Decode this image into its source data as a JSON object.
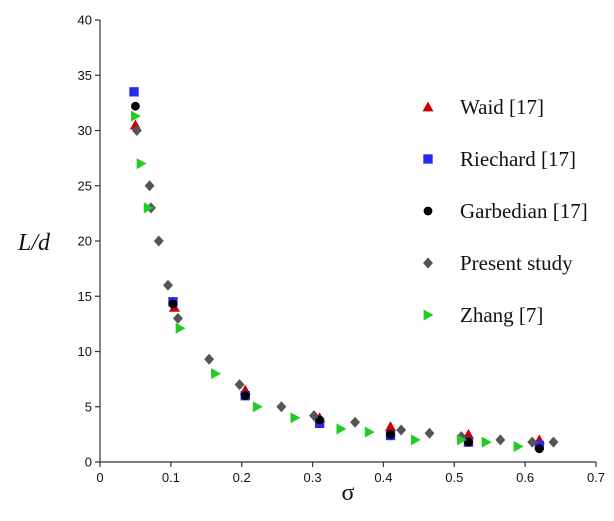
{
  "chart_data": {
    "type": "scatter",
    "xlabel": "σ",
    "ylabel": "L/d",
    "xlim": [
      0,
      0.7
    ],
    "ylim": [
      0,
      40
    ],
    "x_ticks": [
      "0",
      "0.1",
      "0.2",
      "0.3",
      "0.4",
      "0.5",
      "0.6",
      "0.7"
    ],
    "y_ticks": [
      "0",
      "5",
      "10",
      "15",
      "20",
      "25",
      "30",
      "35",
      "40"
    ],
    "grid": false,
    "legend_position": "right",
    "series": [
      {
        "name": "Waid   [17]",
        "marker": "triangle",
        "color": "#cc0000",
        "points": [
          [
            0.05,
            30.5
          ],
          [
            0.105,
            14.0
          ],
          [
            0.205,
            6.5
          ],
          [
            0.31,
            4.0
          ],
          [
            0.41,
            3.2
          ],
          [
            0.52,
            2.5
          ],
          [
            0.62,
            2.0
          ]
        ]
      },
      {
        "name": "Riechard [17]",
        "marker": "square",
        "color": "#2a2aee",
        "points": [
          [
            0.048,
            33.5
          ],
          [
            0.103,
            14.5
          ],
          [
            0.205,
            6.0
          ],
          [
            0.31,
            3.5
          ],
          [
            0.41,
            2.4
          ],
          [
            0.52,
            1.8
          ],
          [
            0.62,
            1.5
          ]
        ]
      },
      {
        "name": "Garbedian [17]",
        "marker": "circle",
        "color": "#000000",
        "points": [
          [
            0.05,
            32.2
          ],
          [
            0.103,
            14.3
          ],
          [
            0.205,
            6.0
          ],
          [
            0.31,
            3.8
          ],
          [
            0.41,
            2.5
          ],
          [
            0.52,
            1.8
          ],
          [
            0.62,
            1.2
          ]
        ]
      },
      {
        "name": "Present study",
        "marker": "diamond",
        "color": "#555555",
        "points": [
          [
            0.052,
            30.0
          ],
          [
            0.07,
            25.0
          ],
          [
            0.072,
            23.0
          ],
          [
            0.083,
            20.0
          ],
          [
            0.096,
            16.0
          ],
          [
            0.11,
            13.0
          ],
          [
            0.154,
            9.3
          ],
          [
            0.197,
            7.0
          ],
          [
            0.256,
            5.0
          ],
          [
            0.302,
            4.2
          ],
          [
            0.36,
            3.6
          ],
          [
            0.425,
            2.9
          ],
          [
            0.465,
            2.6
          ],
          [
            0.51,
            2.3
          ],
          [
            0.565,
            2.0
          ],
          [
            0.61,
            1.8
          ],
          [
            0.64,
            1.8
          ]
        ]
      },
      {
        "name": "Zhang [7]",
        "marker": "triangle-right",
        "color": "#22cc22",
        "points": [
          [
            0.05,
            31.3
          ],
          [
            0.058,
            27.0
          ],
          [
            0.068,
            23.0
          ],
          [
            0.113,
            12.1
          ],
          [
            0.163,
            8.0
          ],
          [
            0.222,
            5.0
          ],
          [
            0.275,
            4.0
          ],
          [
            0.34,
            3.0
          ],
          [
            0.38,
            2.7
          ],
          [
            0.445,
            2.0
          ],
          [
            0.51,
            2.0
          ],
          [
            0.545,
            1.8
          ],
          [
            0.59,
            1.4
          ]
        ]
      }
    ]
  }
}
